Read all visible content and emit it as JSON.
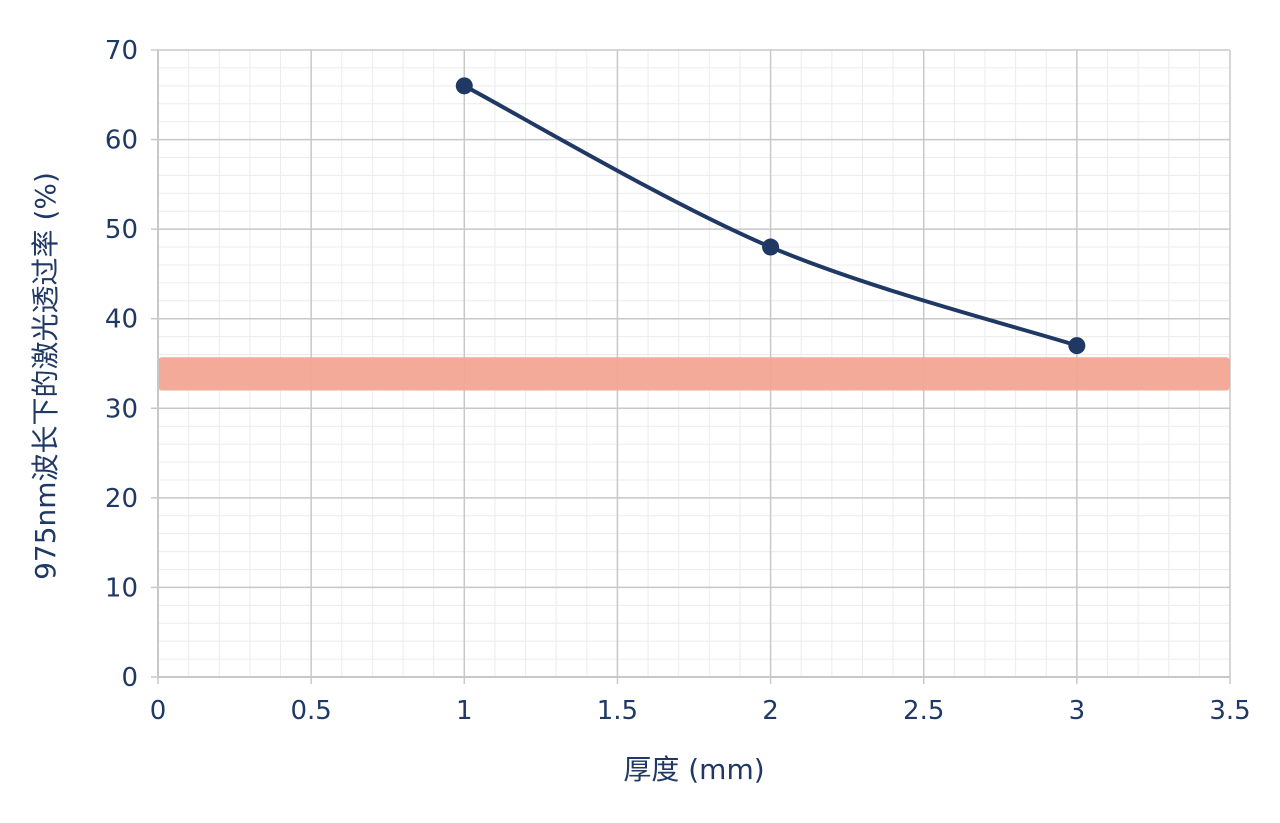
{
  "chart_data": {
    "type": "line",
    "title": "",
    "xlabel": "厚度 (mm)",
    "ylabel": "975nm波长下的激光透过率 (%)",
    "xlim": [
      0,
      3.5
    ],
    "ylim": [
      0,
      70
    ],
    "x_ticks": [
      "0",
      "0.5",
      "1",
      "1.5",
      "2",
      "2.5",
      "3",
      "3.5"
    ],
    "y_ticks": [
      "0",
      "10",
      "20",
      "30",
      "40",
      "50",
      "60",
      "70"
    ],
    "grid": true,
    "minor_grid": true,
    "legend": "none",
    "series": [
      {
        "x": [
          1,
          2,
          3
        ],
        "y": [
          66,
          48,
          37
        ],
        "color": "#1f3864"
      }
    ],
    "band": {
      "y_range": [
        32,
        35.7
      ],
      "x_range": [
        0,
        3.5
      ],
      "color": "#f3a592"
    }
  },
  "colors": {
    "axis_text": "#1f3864",
    "grid_major": "#c8c8c8",
    "grid_minor": "#ececec"
  }
}
